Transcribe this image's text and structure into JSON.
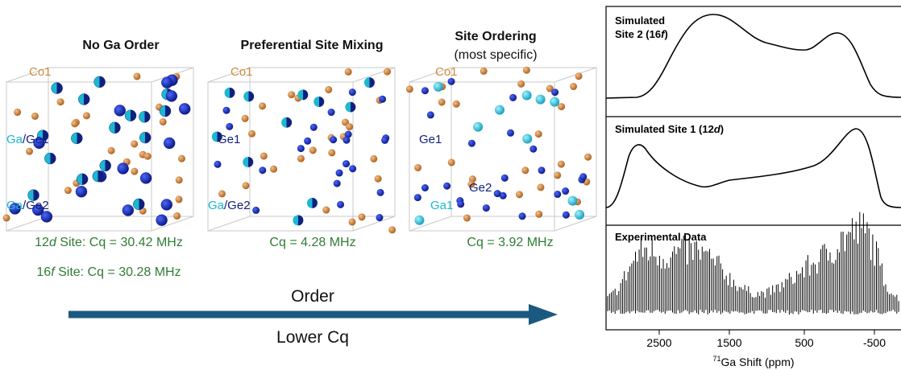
{
  "structures": [
    {
      "title": "No Ga Order",
      "co_label": "Co1",
      "site_labels": [
        [
          "Ga",
          "/Ge1"
        ],
        [
          "Ga",
          "/Ge2"
        ]
      ],
      "cq": [
        [
          "12",
          "d",
          " Site: Cq = 30.42 MHz"
        ],
        [
          "16",
          "f",
          " Site: Cq = 30.28 MHz"
        ]
      ]
    },
    {
      "title": "Preferential Site Mixing",
      "co_label": "Co1",
      "site_labels": [
        [
          "Ge1"
        ],
        [
          "Ga",
          "/Ge2"
        ]
      ],
      "cq": [
        [
          "Cq = 4.28 MHz"
        ]
      ]
    },
    {
      "title": "Site Ordering",
      "subtitle": "(most specific)",
      "co_label": "Co1",
      "site_labels": [
        [
          "Ge1"
        ],
        [
          "Ge2"
        ],
        [
          "Ga1"
        ]
      ],
      "cq": [
        [
          "Cq = 3.92 MHz"
        ]
      ]
    }
  ],
  "arrow": {
    "top": "Order",
    "bottom": "Lower Cq"
  },
  "spectra": {
    "panels": [
      [
        "Simulated",
        "Site 2 (16",
        "f",
        ")"
      ],
      [
        "Simulated Site 1 (12",
        "d",
        ")"
      ],
      [
        "Experimental Data"
      ]
    ],
    "ticks": [
      "2500",
      "1500",
      "500",
      "-500"
    ],
    "xlabel": [
      "71",
      "Ga Shift (ppm)"
    ]
  }
}
